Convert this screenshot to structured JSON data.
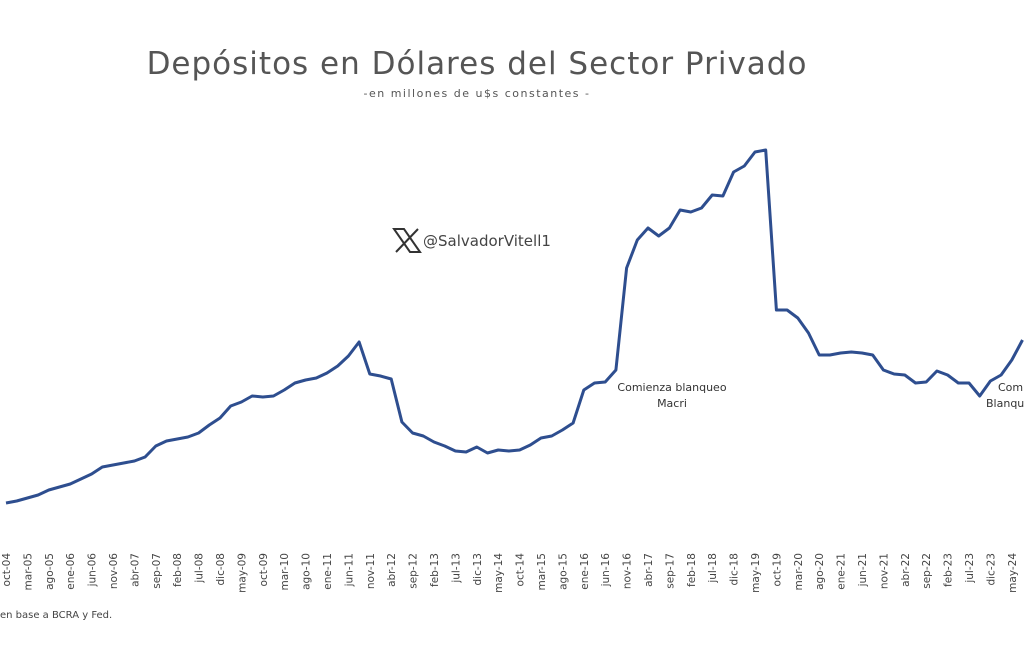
{
  "chart_data": {
    "type": "line",
    "title": "Depósitos en Dólares del Sector Privado",
    "subtitle": "-en millones de u$s constantes -",
    "watermark": "@SalvadorVitell1",
    "source": "en base a BCRA y Fed.",
    "annotations": [
      {
        "lines": [
          "Comienza blanqueo",
          "Macri"
        ],
        "index": 60
      },
      {
        "lines": [
          "Com",
          "Blanqueo"
        ],
        "index": 93
      }
    ],
    "categories": [
      "oct-04",
      null,
      "mar-05",
      null,
      "ago-05",
      null,
      "ene-06",
      null,
      "jun-06",
      null,
      "nov-06",
      null,
      "abr-07",
      null,
      "sep-07",
      null,
      "feb-08",
      null,
      "jul-08",
      null,
      "dic-08",
      null,
      "may-09",
      null,
      "oct-09",
      null,
      "mar-10",
      null,
      "ago-10",
      null,
      "ene-11",
      null,
      "jun-11",
      null,
      "nov-11",
      null,
      "abr-12",
      null,
      "sep-12",
      null,
      "feb-13",
      null,
      "jul-13",
      null,
      "dic-13",
      null,
      "may-14",
      null,
      "oct-14",
      null,
      "mar-15",
      null,
      "ago-15",
      null,
      "ene-16",
      null,
      "jun-16",
      null,
      "nov-16",
      null,
      "abr-17",
      null,
      "sep-17",
      null,
      "feb-18",
      null,
      "jul-18",
      null,
      "dic-18",
      null,
      "may-19",
      null,
      "oct-19",
      null,
      "mar-20",
      null,
      "ago-20",
      null,
      "ene-21",
      null,
      "jun-21",
      null,
      "nov-21",
      null,
      "abr-22",
      null,
      "sep-22",
      null,
      "feb-23",
      null,
      "jul-23",
      null,
      "dic-23",
      null,
      "may-24",
      null
    ],
    "series": [
      {
        "color": "#2e4e8f",
        "values": [
          6750,
          6930,
          7200,
          7470,
          7920,
          8190,
          8460,
          8910,
          9360,
          9990,
          10170,
          10350,
          10530,
          10890,
          11880,
          12330,
          12510,
          12690,
          13050,
          13770,
          14400,
          15480,
          15840,
          16380,
          16290,
          16380,
          16920,
          17550,
          17820,
          18000,
          18450,
          19080,
          19980,
          21240,
          18360,
          18180,
          17910,
          14040,
          13050,
          12780,
          12240,
          11880,
          11430,
          11340,
          11790,
          11250,
          11520,
          11430,
          11520,
          11970,
          12600,
          12780,
          13320,
          13950,
          16920,
          17550,
          17640,
          18720,
          27900,
          30420,
          31500,
          30780,
          31500,
          33120,
          32940,
          33300,
          34470,
          34380,
          36540,
          37080,
          38340,
          38520,
          24120,
          24120,
          23400,
          22050,
          20070,
          20070,
          20250,
          20340,
          20250,
          20070,
          18720,
          18360,
          18270,
          17550,
          17640,
          18630,
          18270,
          17550,
          17550,
          16380,
          17730,
          18270,
          19620,
          21420
        ]
      }
    ],
    "ylim": [
      0,
      45000
    ]
  }
}
